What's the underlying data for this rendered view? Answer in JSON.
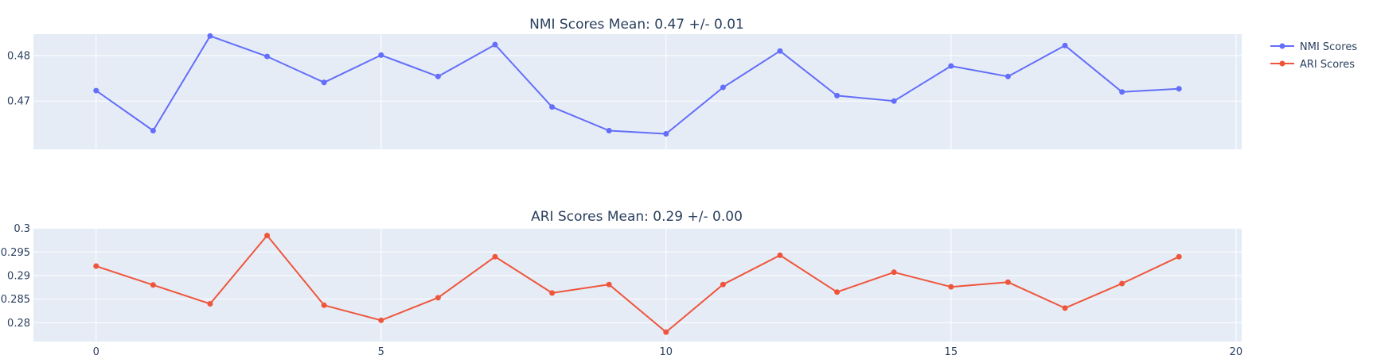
{
  "chart_data": [
    {
      "type": "line",
      "title": "NMI Scores Mean: 0.47 +/- 0.01",
      "x": [
        0,
        1,
        2,
        3,
        4,
        5,
        6,
        7,
        8,
        9,
        10,
        11,
        12,
        13,
        14,
        15,
        16,
        17,
        18,
        19
      ],
      "series": [
        {
          "name": "NMI Scores",
          "color": "#636efa",
          "values": [
            0.4723,
            0.4635,
            0.4843,
            0.4798,
            0.4741,
            0.4801,
            0.4754,
            0.4824,
            0.4687,
            0.4635,
            0.4628,
            0.473,
            0.481,
            0.4712,
            0.47,
            0.4777,
            0.4754,
            0.4822,
            0.472,
            0.4727
          ]
        }
      ],
      "xlim": [
        -1.1,
        20.1
      ],
      "ylim": [
        0.4594,
        0.4847
      ],
      "yticks": [
        "0.47",
        "0.48"
      ],
      "xticks": [
        "0",
        "5",
        "10",
        "15",
        "20"
      ],
      "show_xtick_labels": false,
      "grid": true
    },
    {
      "type": "line",
      "title": "ARI Scores Mean: 0.29 +/- 0.00",
      "x": [
        0,
        1,
        2,
        3,
        4,
        5,
        6,
        7,
        8,
        9,
        10,
        11,
        12,
        13,
        14,
        15,
        16,
        17,
        18,
        19
      ],
      "series": [
        {
          "name": "ARI Scores",
          "color": "#ef553b",
          "values": [
            0.292,
            0.288,
            0.284,
            0.2985,
            0.2837,
            0.2805,
            0.2853,
            0.294,
            0.2863,
            0.2881,
            0.278,
            0.2881,
            0.2943,
            0.2865,
            0.2907,
            0.2876,
            0.2886,
            0.2831,
            0.2883,
            0.294
          ]
        }
      ],
      "xlim": [
        -1.1,
        20.1
      ],
      "ylim": [
        0.276,
        0.3001
      ],
      "yticks": [
        "0.28",
        "0.285",
        "0.29",
        "0.295",
        "0.3"
      ],
      "xticks": [
        "0",
        "5",
        "10",
        "15",
        "20"
      ],
      "show_xtick_labels": true,
      "grid": true
    }
  ],
  "legend": {
    "placement": "top-right",
    "items": [
      {
        "label": "NMI Scores",
        "color": "#636efa"
      },
      {
        "label": "ARI Scores",
        "color": "#ef553b"
      }
    ]
  },
  "colors": {
    "plot_background": "#e5ecf6",
    "grid": "#ffffff",
    "text": "#2a3f5f"
  }
}
